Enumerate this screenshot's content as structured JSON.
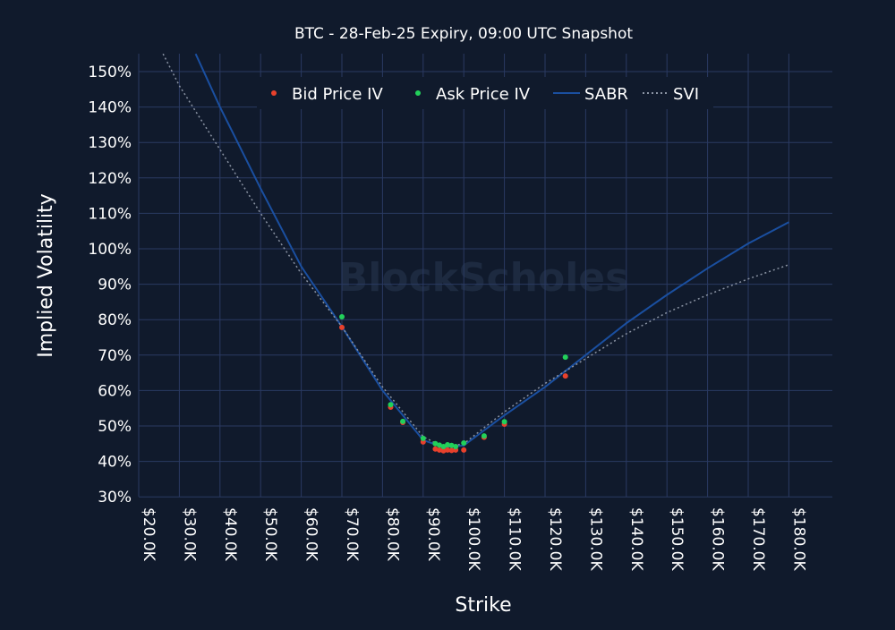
{
  "chart_data": {
    "type": "scatter",
    "title": "BTC - 28-Feb-25 Expiry, 09:00 UTC Snapshot",
    "xlabel": "Strike",
    "ylabel": "Implied Volatility",
    "xlim": [
      20000,
      190000
    ],
    "ylim": [
      30,
      155
    ],
    "x_ticks": [
      20000,
      30000,
      40000,
      50000,
      60000,
      70000,
      80000,
      90000,
      100000,
      110000,
      120000,
      130000,
      140000,
      150000,
      160000,
      170000,
      180000
    ],
    "x_tick_labels": [
      "$20.0K",
      "$30.0K",
      "$40.0K",
      "$50.0K",
      "$60.0K",
      "$70.0K",
      "$80.0K",
      "$90.0K",
      "$100.0K",
      "$110.0K",
      "$120.0K",
      "$130.0K",
      "$140.0K",
      "$150.0K",
      "$160.0K",
      "$170.0K",
      "$180.0K"
    ],
    "y_ticks": [
      30,
      40,
      50,
      60,
      70,
      80,
      90,
      100,
      110,
      120,
      130,
      140,
      150
    ],
    "y_tick_labels": [
      "30%",
      "40%",
      "50%",
      "60%",
      "70%",
      "80%",
      "90%",
      "100%",
      "110%",
      "120%",
      "130%",
      "140%",
      "150%"
    ],
    "grid": true,
    "legend_position": "top-center",
    "watermark": "BlockScholes",
    "colors": {
      "bid": "#e8412c",
      "ask": "#22d05a",
      "sabr": "#1a4fa0",
      "svi": "#8a93a3",
      "grid": "#2a3a62",
      "background": "#101a2c"
    },
    "series": [
      {
        "name": "Bid Price IV",
        "kind": "scatter",
        "x": [
          70000,
          82000,
          85000,
          90000,
          93000,
          94000,
          95000,
          96000,
          97000,
          98000,
          100000,
          105000,
          110000,
          125000
        ],
        "y": [
          77.8,
          55.3,
          51.0,
          45.5,
          43.5,
          43.2,
          43.0,
          43.2,
          43.1,
          43.2,
          43.2,
          46.8,
          50.5,
          64.1
        ]
      },
      {
        "name": "Ask Price IV",
        "kind": "scatter",
        "x": [
          70000,
          82000,
          85000,
          90000,
          93000,
          94000,
          95000,
          96000,
          97000,
          98000,
          100000,
          105000,
          110000,
          125000
        ],
        "y": [
          80.8,
          56.0,
          51.3,
          46.5,
          45.0,
          44.6,
          44.2,
          44.7,
          44.5,
          44.2,
          45.2,
          47.2,
          51.2,
          69.4
        ]
      },
      {
        "name": "SABR",
        "kind": "line",
        "x": [
          34000,
          40000,
          50000,
          60000,
          70000,
          80000,
          90000,
          95000,
          100000,
          110000,
          120000,
          130000,
          140000,
          150000,
          160000,
          170000,
          180000
        ],
        "y": [
          155,
          140,
          117,
          95,
          78,
          60,
          46,
          44,
          44.5,
          53,
          61,
          70,
          79,
          87,
          94.5,
          101.5,
          107.5
        ]
      },
      {
        "name": "SVI",
        "kind": "line",
        "x": [
          26000,
          30000,
          40000,
          50000,
          60000,
          70000,
          80000,
          90000,
          95000,
          100000,
          110000,
          120000,
          130000,
          140000,
          150000,
          160000,
          170000,
          180000
        ],
        "y": [
          155,
          146,
          128,
          110,
          93,
          78,
          61,
          47,
          44,
          45,
          54,
          62,
          69,
          76,
          82,
          87,
          91.5,
          95.5
        ]
      }
    ]
  }
}
